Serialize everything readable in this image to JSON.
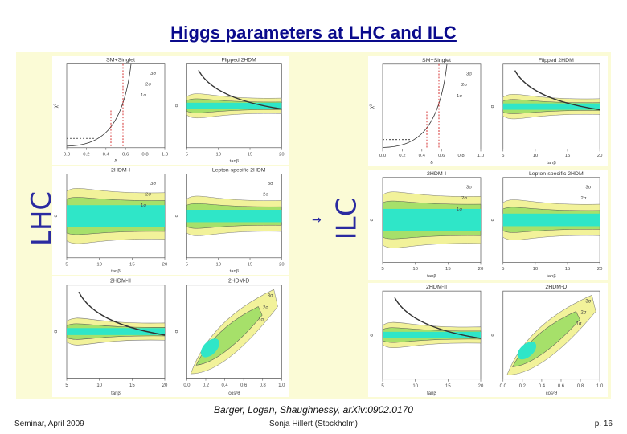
{
  "slide": {
    "title": "Higgs parameters at LHC and ILC",
    "left_label": "LHC",
    "right_label": "ILC",
    "arrow": "→",
    "caption": "Barger, Logan, Shaughnessy, arXiv:0902.0170",
    "footer_left": "Seminar, April 2009",
    "footer_center": "Sonja Hillert (Stockholm)",
    "footer_right": "p. 16"
  },
  "colors": {
    "title": "#0a0a8c",
    "background_panel": "#fbfbd6",
    "band_outer": "#f2f29a",
    "band_mid": "#a6e06a",
    "band_inner": "#2fe6c8"
  },
  "plots": {
    "lhc": [
      {
        "title": "SM+Singlet",
        "xlabel": "δ",
        "ylabel": "χ²",
        "xticks": [
          "0.0",
          "0.2",
          "0.4",
          "0.6",
          "0.8",
          "1.0"
        ],
        "labels": [
          "3σ",
          "2σ",
          "1σ"
        ]
      },
      {
        "title": "Flipped 2HDM",
        "xlabel": "tanβ",
        "ylabel": "α",
        "xticks": [
          "5",
          "10",
          "15",
          "20"
        ],
        "labels": []
      },
      {
        "title": "2HDM-I",
        "xlabel": "tanβ",
        "ylabel": "α",
        "xticks": [
          "5",
          "10",
          "15",
          "20"
        ],
        "labels": [
          "3σ",
          "2σ",
          "1σ"
        ]
      },
      {
        "title": "Lepton-specific 2HDM",
        "xlabel": "tanβ",
        "ylabel": "α",
        "xticks": [
          "5",
          "10",
          "15",
          "20"
        ],
        "labels": [
          "3σ",
          "2σ"
        ]
      },
      {
        "title": "2HDM-II",
        "xlabel": "tanβ",
        "ylabel": "α",
        "xticks": [
          "5",
          "10",
          "15",
          "20"
        ],
        "labels": []
      },
      {
        "title": "2HDM-D",
        "xlabel": "cos²θ",
        "ylabel": "α",
        "xticks": [
          "0.0",
          "0.2",
          "0.4",
          "0.6",
          "0.8",
          "1.0"
        ],
        "labels": [
          "3σ",
          "2σ",
          "1σ"
        ]
      }
    ],
    "ilc": [
      {
        "title": "SM+Singlet",
        "xlabel": "δ",
        "ylabel": "χ²",
        "xticks": [
          "0.0",
          "0.2",
          "0.4",
          "0.6",
          "0.8",
          "1.0"
        ],
        "labels": [
          "3σ",
          "2σ",
          "1σ"
        ]
      },
      {
        "title": "Flipped 2HDM",
        "xlabel": "tanβ",
        "ylabel": "α",
        "xticks": [
          "5",
          "10",
          "15",
          "20"
        ],
        "labels": []
      },
      {
        "title": "2HDM-I",
        "xlabel": "tanβ",
        "ylabel": "α",
        "xticks": [
          "5",
          "10",
          "15",
          "20"
        ],
        "labels": [
          "3σ",
          "2σ",
          "1σ"
        ]
      },
      {
        "title": "Lepton-specific 2HDM",
        "xlabel": "tanβ",
        "ylabel": "α",
        "xticks": [
          "5",
          "10",
          "15",
          "20"
        ],
        "labels": [
          "3σ",
          "2σ"
        ]
      },
      {
        "title": "2HDM-II",
        "xlabel": "tanβ",
        "ylabel": "α",
        "xticks": [
          "5",
          "10",
          "15",
          "20"
        ],
        "labels": []
      },
      {
        "title": "2HDM-D",
        "xlabel": "cos²θ",
        "ylabel": "α",
        "xticks": [
          "0.0",
          "0.2",
          "0.4",
          "0.6",
          "0.8",
          "1.0"
        ],
        "labels": [
          "3σ",
          "2σ",
          "1σ"
        ]
      }
    ]
  }
}
